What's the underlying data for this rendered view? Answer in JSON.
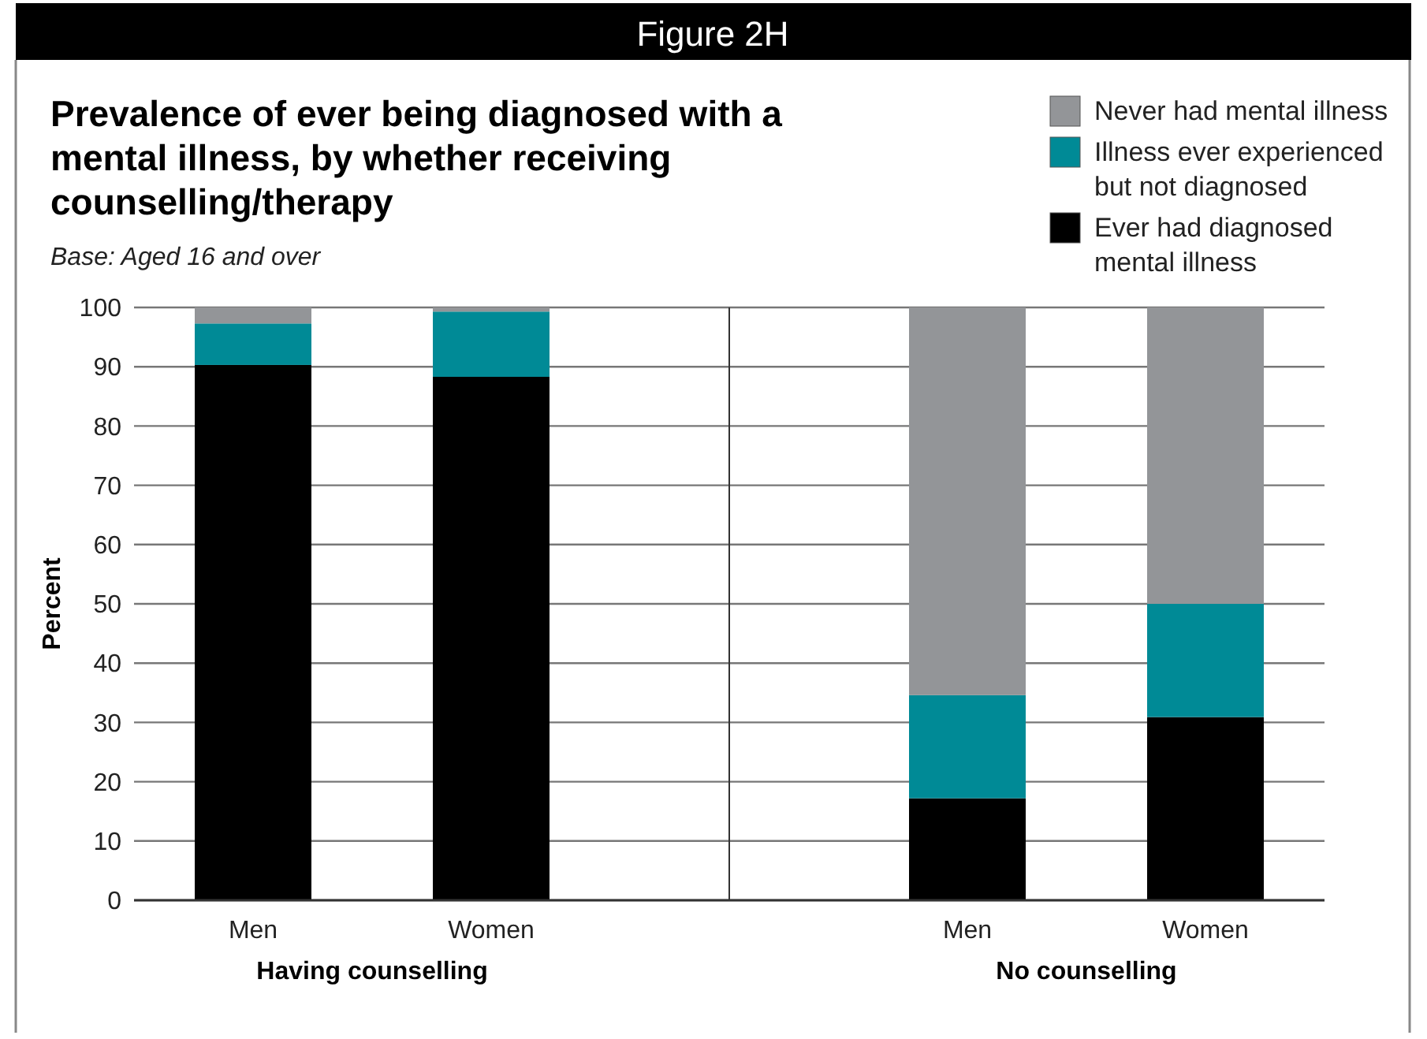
{
  "chart_data": [
    {
      "type": "bar",
      "stacked": true,
      "title": "Prevalence of ever being diagnosed with a mental illness, by whether receiving counselling/therapy",
      "subtitle": "Base: Aged 16 and over",
      "ylabel": "Percent",
      "xlabel": "Having counselling",
      "categories": [
        "Men",
        "Women"
      ],
      "series": [
        {
          "name": "Ever had diagnosed mental illness",
          "color": "#000000",
          "values": [
            90.3,
            88.3
          ]
        },
        {
          "name": "Illness ever experienced but not diagnosed",
          "color": "#008a96",
          "values": [
            7.0,
            11.0
          ]
        },
        {
          "name": "Never had mental illness",
          "color": "#939598",
          "values": [
            2.7,
            0.7
          ]
        }
      ],
      "ylim": [
        0,
        100
      ],
      "yticks": [
        0,
        10,
        20,
        30,
        40,
        50,
        60,
        70,
        80,
        90,
        100
      ],
      "grid": "y",
      "legend": "top right",
      "annotations": [
        "Figure 2H"
      ]
    },
    {
      "type": "bar",
      "stacked": true,
      "xlabel": "No counselling",
      "categories": [
        "Men",
        "Women"
      ],
      "series": [
        {
          "color": "#000000",
          "values": [
            17.2,
            30.9
          ]
        },
        {
          "color": "#008a96",
          "values": [
            17.4,
            19.1
          ]
        },
        {
          "color": "#939598",
          "values": [
            65.4,
            50.0
          ]
        }
      ],
      "ylim": [
        0,
        100
      ],
      "yticks": [
        0,
        10,
        20,
        30,
        40,
        50,
        60,
        70,
        80,
        90,
        100
      ],
      "grid": "y",
      "tick_labels": "x"
    }
  ]
}
